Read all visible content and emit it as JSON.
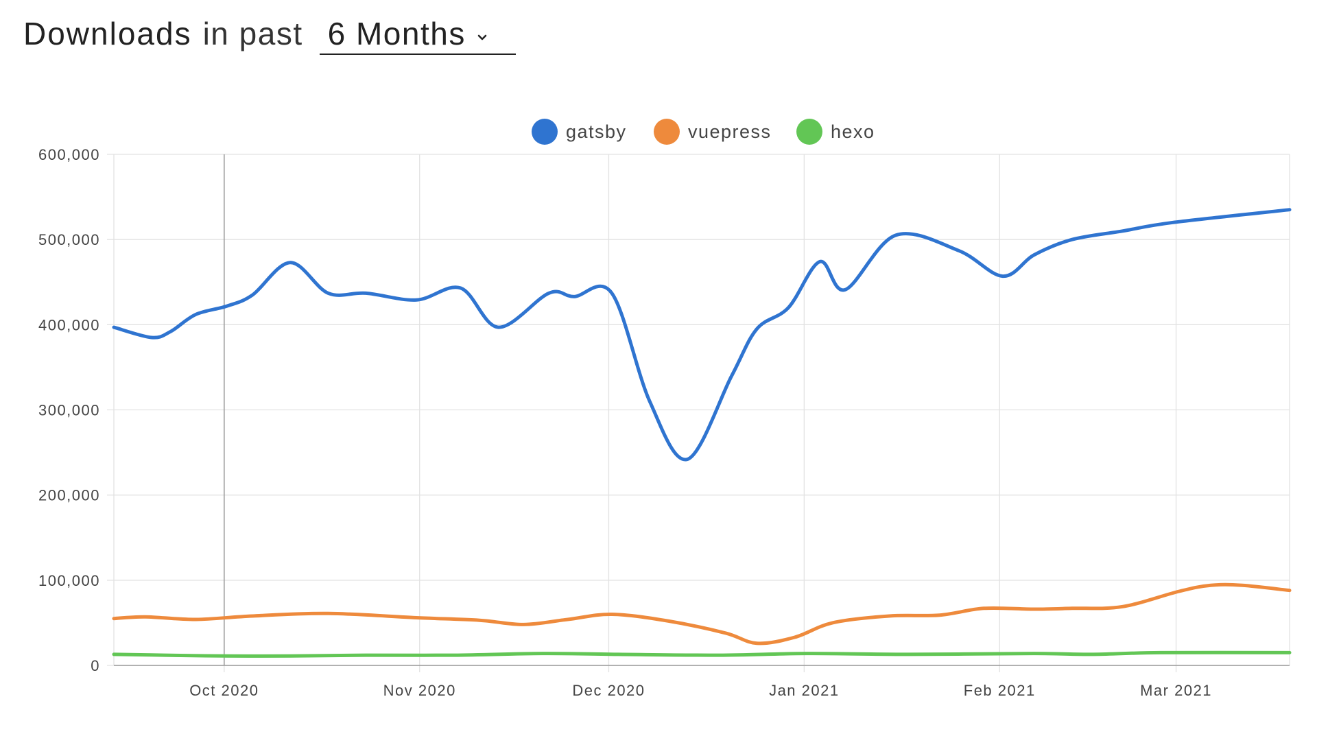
{
  "header": {
    "title": "Downloads",
    "subtitle": "in past",
    "period": "6 Months",
    "chevron_icon": "chevron-down-icon"
  },
  "colors": {
    "gatsby": "#2f74d0",
    "vuepress": "#ee8a3c",
    "hexo": "#62c655",
    "grid": "#e2e2e2",
    "axis": "#999999",
    "highlight": "#9a9a9a"
  },
  "chart_data": {
    "type": "line",
    "title": "",
    "xlabel": "",
    "ylabel": "",
    "ylim": [
      0,
      600000
    ],
    "y_ticks": [
      0,
      100000,
      200000,
      300000,
      400000,
      500000,
      600000
    ],
    "y_tick_labels": [
      "0",
      "100,000",
      "200,000",
      "300,000",
      "400,000",
      "500,000",
      "600,000"
    ],
    "x_range": [
      -17.5,
      169
    ],
    "x_ticks": [
      0,
      31,
      61,
      92,
      123,
      151
    ],
    "x_tick_labels": [
      "Oct 2020",
      "Nov 2020",
      "Dec 2020",
      "Jan 2021",
      "Feb 2021",
      "Mar 2021"
    ],
    "highlight_x": 0,
    "x_unit": "days since 2020-10-01",
    "legend_position": "top-center",
    "grid": true,
    "series": [
      {
        "name": "gatsby",
        "x": [
          -17.5,
          -11.5,
          -8.5,
          -4.5,
          0.5,
          4.5,
          10.5,
          16.5,
          22.5,
          30.5,
          37.5,
          43.5,
          51.5,
          55.5,
          61.5,
          67.5,
          73.5,
          80.5,
          84.5,
          89.5,
          94.5,
          98.5,
          106.5,
          116.5,
          123.5,
          128.5,
          134.5,
          142.5,
          150.5,
          169
        ],
        "values": [
          397000,
          385000,
          392000,
          412000,
          422000,
          435000,
          473000,
          437000,
          437000,
          429000,
          443000,
          397000,
          437000,
          433000,
          437000,
          310000,
          242000,
          340000,
          395000,
          420000,
          474000,
          441000,
          505000,
          487000,
          457000,
          482000,
          500000,
          510000,
          520000,
          535000
        ]
      },
      {
        "name": "vuepress",
        "x": [
          -17.5,
          -12.5,
          -4.5,
          4.5,
          16.5,
          30.5,
          40.5,
          47.5,
          54.5,
          61.5,
          70.5,
          79.5,
          84.5,
          90.5,
          96.5,
          105.5,
          113.5,
          120.5,
          128.5,
          134.5,
          142.5,
          151.5,
          156.5,
          161.5,
          169
        ],
        "values": [
          55000,
          57000,
          54000,
          58000,
          61000,
          56000,
          53000,
          48000,
          54000,
          60000,
          52000,
          38000,
          26000,
          33000,
          50000,
          58000,
          59000,
          67000,
          66000,
          67000,
          69000,
          87000,
          94000,
          94000,
          88000
        ]
      },
      {
        "name": "hexo",
        "x": [
          -17.5,
          -9.5,
          0.5,
          10.5,
          22.5,
          36.5,
          50.5,
          62.5,
          78.5,
          92.5,
          108.5,
          128.5,
          137.5,
          148.5,
          169
        ],
        "values": [
          13000,
          12000,
          11000,
          11000,
          12000,
          12000,
          14000,
          13000,
          12000,
          14000,
          13000,
          14000,
          13000,
          15000,
          15000
        ]
      }
    ]
  }
}
